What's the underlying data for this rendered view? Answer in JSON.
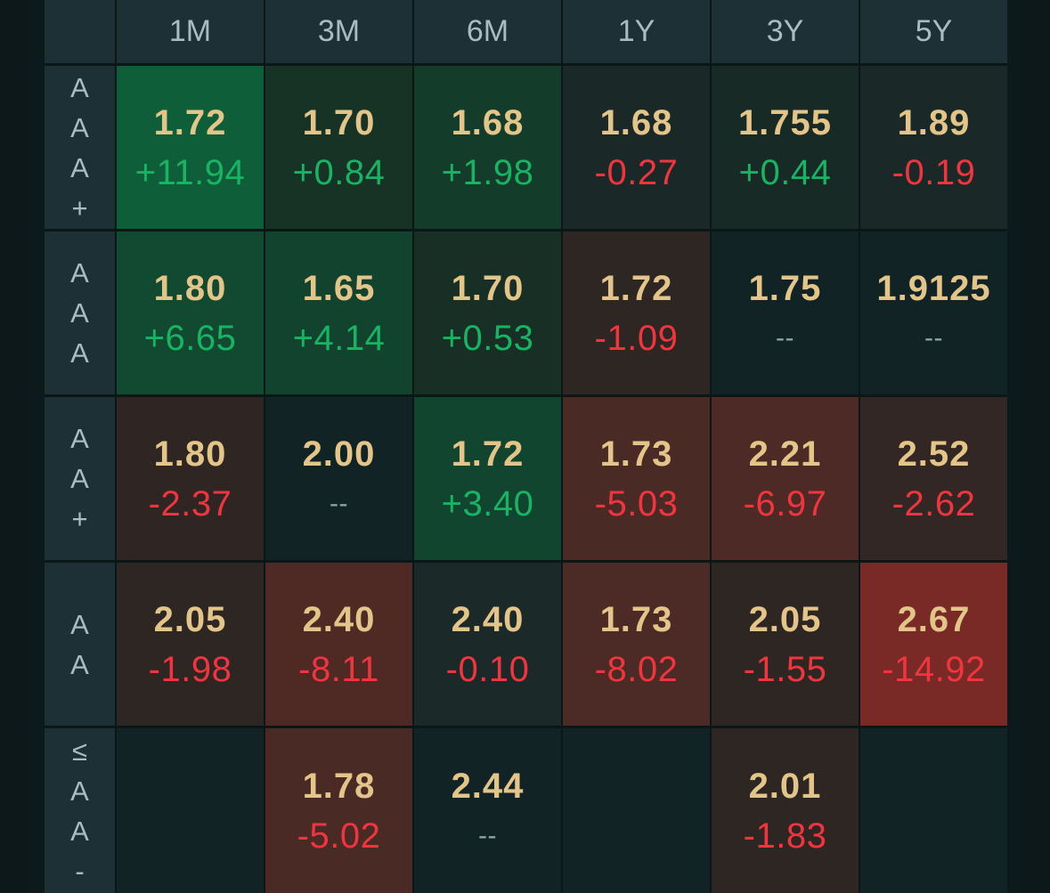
{
  "columns": [
    "1M",
    "3M",
    "6M",
    "1Y",
    "3Y",
    "5Y"
  ],
  "rows": [
    {
      "label": [
        "A",
        "A",
        "A",
        "+"
      ],
      "cells": [
        {
          "rate": "1.72",
          "change": "+11.94",
          "dir": "up",
          "bg": "#0f5e3a"
        },
        {
          "rate": "1.70",
          "change": "+0.84",
          "dir": "up",
          "bg": "#173326"
        },
        {
          "rate": "1.68",
          "change": "+1.98",
          "dir": "up",
          "bg": "#133c2b"
        },
        {
          "rate": "1.68",
          "change": "-0.27",
          "dir": "down",
          "bg": "#1a2927"
        },
        {
          "rate": "1.755",
          "change": "+0.44",
          "dir": "up",
          "bg": "#172a25"
        },
        {
          "rate": "1.89",
          "change": "-0.19",
          "dir": "down",
          "bg": "#1a2927"
        }
      ]
    },
    {
      "label": [
        "A",
        "A",
        "A"
      ],
      "cells": [
        {
          "rate": "1.80",
          "change": "+6.65",
          "dir": "up",
          "bg": "#114a31"
        },
        {
          "rate": "1.65",
          "change": "+4.14",
          "dir": "up",
          "bg": "#12432e"
        },
        {
          "rate": "1.70",
          "change": "+0.53",
          "dir": "up",
          "bg": "#172f25"
        },
        {
          "rate": "1.72",
          "change": "-1.09",
          "dir": "down",
          "bg": "#2e2623"
        },
        {
          "rate": "1.75",
          "change": "--",
          "dir": "flat",
          "bg": "#122326"
        },
        {
          "rate": "1.9125",
          "change": "--",
          "dir": "flat",
          "bg": "#122326"
        }
      ]
    },
    {
      "label": [
        "A",
        "A",
        "+"
      ],
      "cells": [
        {
          "rate": "1.80",
          "change": "-2.37",
          "dir": "down",
          "bg": "#2f2623"
        },
        {
          "rate": "2.00",
          "change": "--",
          "dir": "flat",
          "bg": "#122326"
        },
        {
          "rate": "1.72",
          "change": "+3.40",
          "dir": "up",
          "bg": "#11452f"
        },
        {
          "rate": "1.73",
          "change": "-5.03",
          "dir": "down",
          "bg": "#4a2a25"
        },
        {
          "rate": "2.21",
          "change": "-6.97",
          "dir": "down",
          "bg": "#4d2a25"
        },
        {
          "rate": "2.52",
          "change": "-2.62",
          "dir": "down",
          "bg": "#322724"
        }
      ]
    },
    {
      "label": [
        "A",
        "A"
      ],
      "cells": [
        {
          "rate": "2.05",
          "change": "-1.98",
          "dir": "down",
          "bg": "#2e2623"
        },
        {
          "rate": "2.40",
          "change": "-8.11",
          "dir": "down",
          "bg": "#4f2a25"
        },
        {
          "rate": "2.40",
          "change": "-0.10",
          "dir": "down",
          "bg": "#1b2928"
        },
        {
          "rate": "1.73",
          "change": "-8.02",
          "dir": "down",
          "bg": "#4c2a25"
        },
        {
          "rate": "2.05",
          "change": "-1.55",
          "dir": "down",
          "bg": "#2e2623"
        },
        {
          "rate": "2.67",
          "change": "-14.92",
          "dir": "down",
          "bg": "#7a2a26"
        }
      ]
    },
    {
      "label": [
        "≤",
        "A",
        "A",
        "-"
      ],
      "cells": [
        {
          "rate": "",
          "change": "",
          "dir": "flat",
          "bg": "#122326"
        },
        {
          "rate": "1.78",
          "change": "-5.02",
          "dir": "down",
          "bg": "#4a2a25"
        },
        {
          "rate": "2.44",
          "change": "--",
          "dir": "flat",
          "bg": "#122326"
        },
        {
          "rate": "",
          "change": "",
          "dir": "flat",
          "bg": "#122326"
        },
        {
          "rate": "2.01",
          "change": "-1.83",
          "dir": "down",
          "bg": "#2e2623"
        },
        {
          "rate": "",
          "change": "",
          "dir": "flat",
          "bg": "#122326"
        }
      ]
    }
  ]
}
